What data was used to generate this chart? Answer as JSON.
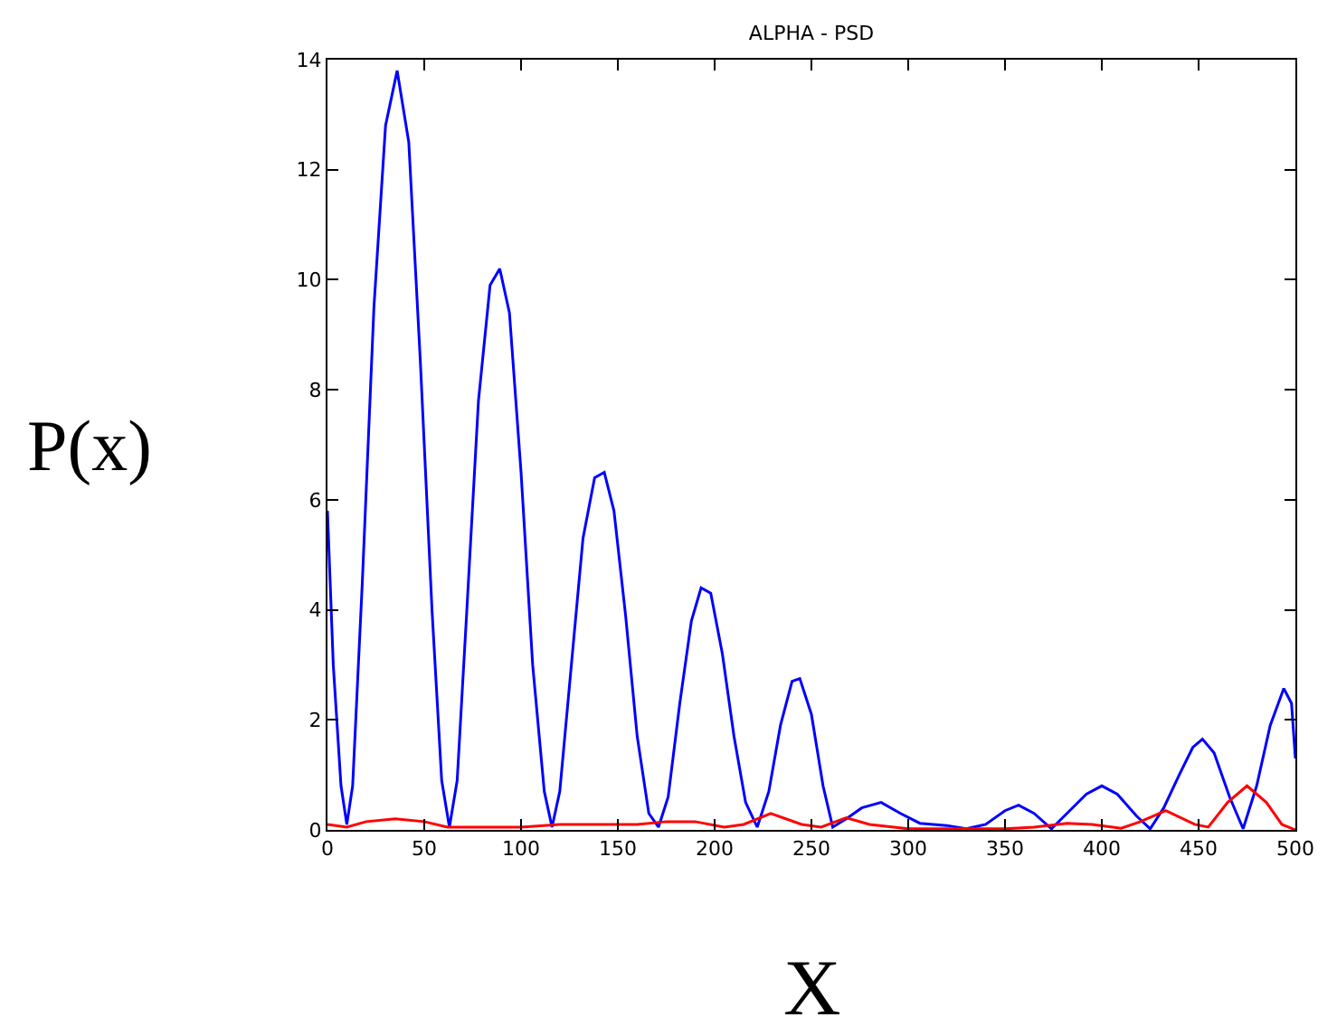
{
  "chart_data": {
    "type": "line",
    "title": "ALPHA - PSD",
    "xlabel": "X",
    "ylabel": "P(x)",
    "xlim": [
      0,
      500
    ],
    "xticks": [
      0,
      50,
      100,
      150,
      200,
      250,
      300,
      350,
      400,
      450,
      500
    ],
    "ylim": [
      0,
      14
    ],
    "yticks": [
      0,
      2,
      4,
      6,
      8,
      10,
      12,
      14
    ],
    "marker": "none",
    "line_style": "solid",
    "series": [
      {
        "color": "#0000ff",
        "x": [
          0,
          3,
          7,
          10,
          13,
          18,
          24,
          30,
          36,
          42,
          48,
          54,
          59,
          63,
          67,
          72,
          78,
          84,
          89,
          94,
          100,
          106,
          112,
          116,
          120,
          126,
          132,
          138,
          143,
          148,
          154,
          160,
          166,
          171,
          176,
          182,
          188,
          193,
          198,
          204,
          210,
          216,
          222,
          228,
          234,
          240,
          244,
          250,
          256,
          261,
          268,
          276,
          286,
          296,
          306,
          320,
          330,
          340,
          350,
          357,
          365,
          374,
          382,
          392,
          400,
          408,
          418,
          425,
          432,
          440,
          447,
          452,
          458,
          466,
          473,
          480,
          487,
          494,
          498,
          500
        ],
        "values": [
          5.8,
          3.0,
          0.8,
          0.1,
          0.8,
          4.5,
          9.5,
          12.8,
          13.8,
          12.5,
          8.5,
          4.0,
          0.9,
          0.05,
          0.9,
          4.0,
          7.8,
          9.9,
          10.2,
          9.4,
          6.5,
          3.0,
          0.7,
          0.05,
          0.7,
          3.0,
          5.3,
          6.4,
          6.5,
          5.8,
          3.9,
          1.7,
          0.3,
          0.05,
          0.6,
          2.3,
          3.8,
          4.4,
          4.3,
          3.2,
          1.7,
          0.5,
          0.05,
          0.7,
          1.9,
          2.7,
          2.75,
          2.1,
          0.8,
          0.05,
          0.2,
          0.4,
          0.5,
          0.3,
          0.12,
          0.08,
          0.02,
          0.1,
          0.35,
          0.45,
          0.3,
          0.02,
          0.3,
          0.65,
          0.8,
          0.65,
          0.25,
          0.02,
          0.4,
          1.0,
          1.5,
          1.65,
          1.4,
          0.6,
          0.02,
          0.8,
          1.9,
          2.57,
          2.3,
          1.3
        ]
      },
      {
        "color": "#ff0000",
        "x": [
          0,
          10,
          20,
          35,
          50,
          62,
          80,
          100,
          120,
          140,
          160,
          175,
          190,
          205,
          215,
          229,
          245,
          255,
          268,
          280,
          300,
          350,
          365,
          382,
          395,
          410,
          420,
          433,
          448,
          455,
          465,
          475,
          485,
          493,
          500
        ],
        "values": [
          0.1,
          0.05,
          0.15,
          0.2,
          0.15,
          0.05,
          0.05,
          0.05,
          0.1,
          0.1,
          0.1,
          0.15,
          0.15,
          0.05,
          0.1,
          0.3,
          0.1,
          0.05,
          0.22,
          0.1,
          0.02,
          0.02,
          0.05,
          0.12,
          0.1,
          0.03,
          0.15,
          0.35,
          0.1,
          0.05,
          0.5,
          0.8,
          0.5,
          0.1,
          0.0
        ]
      }
    ]
  }
}
